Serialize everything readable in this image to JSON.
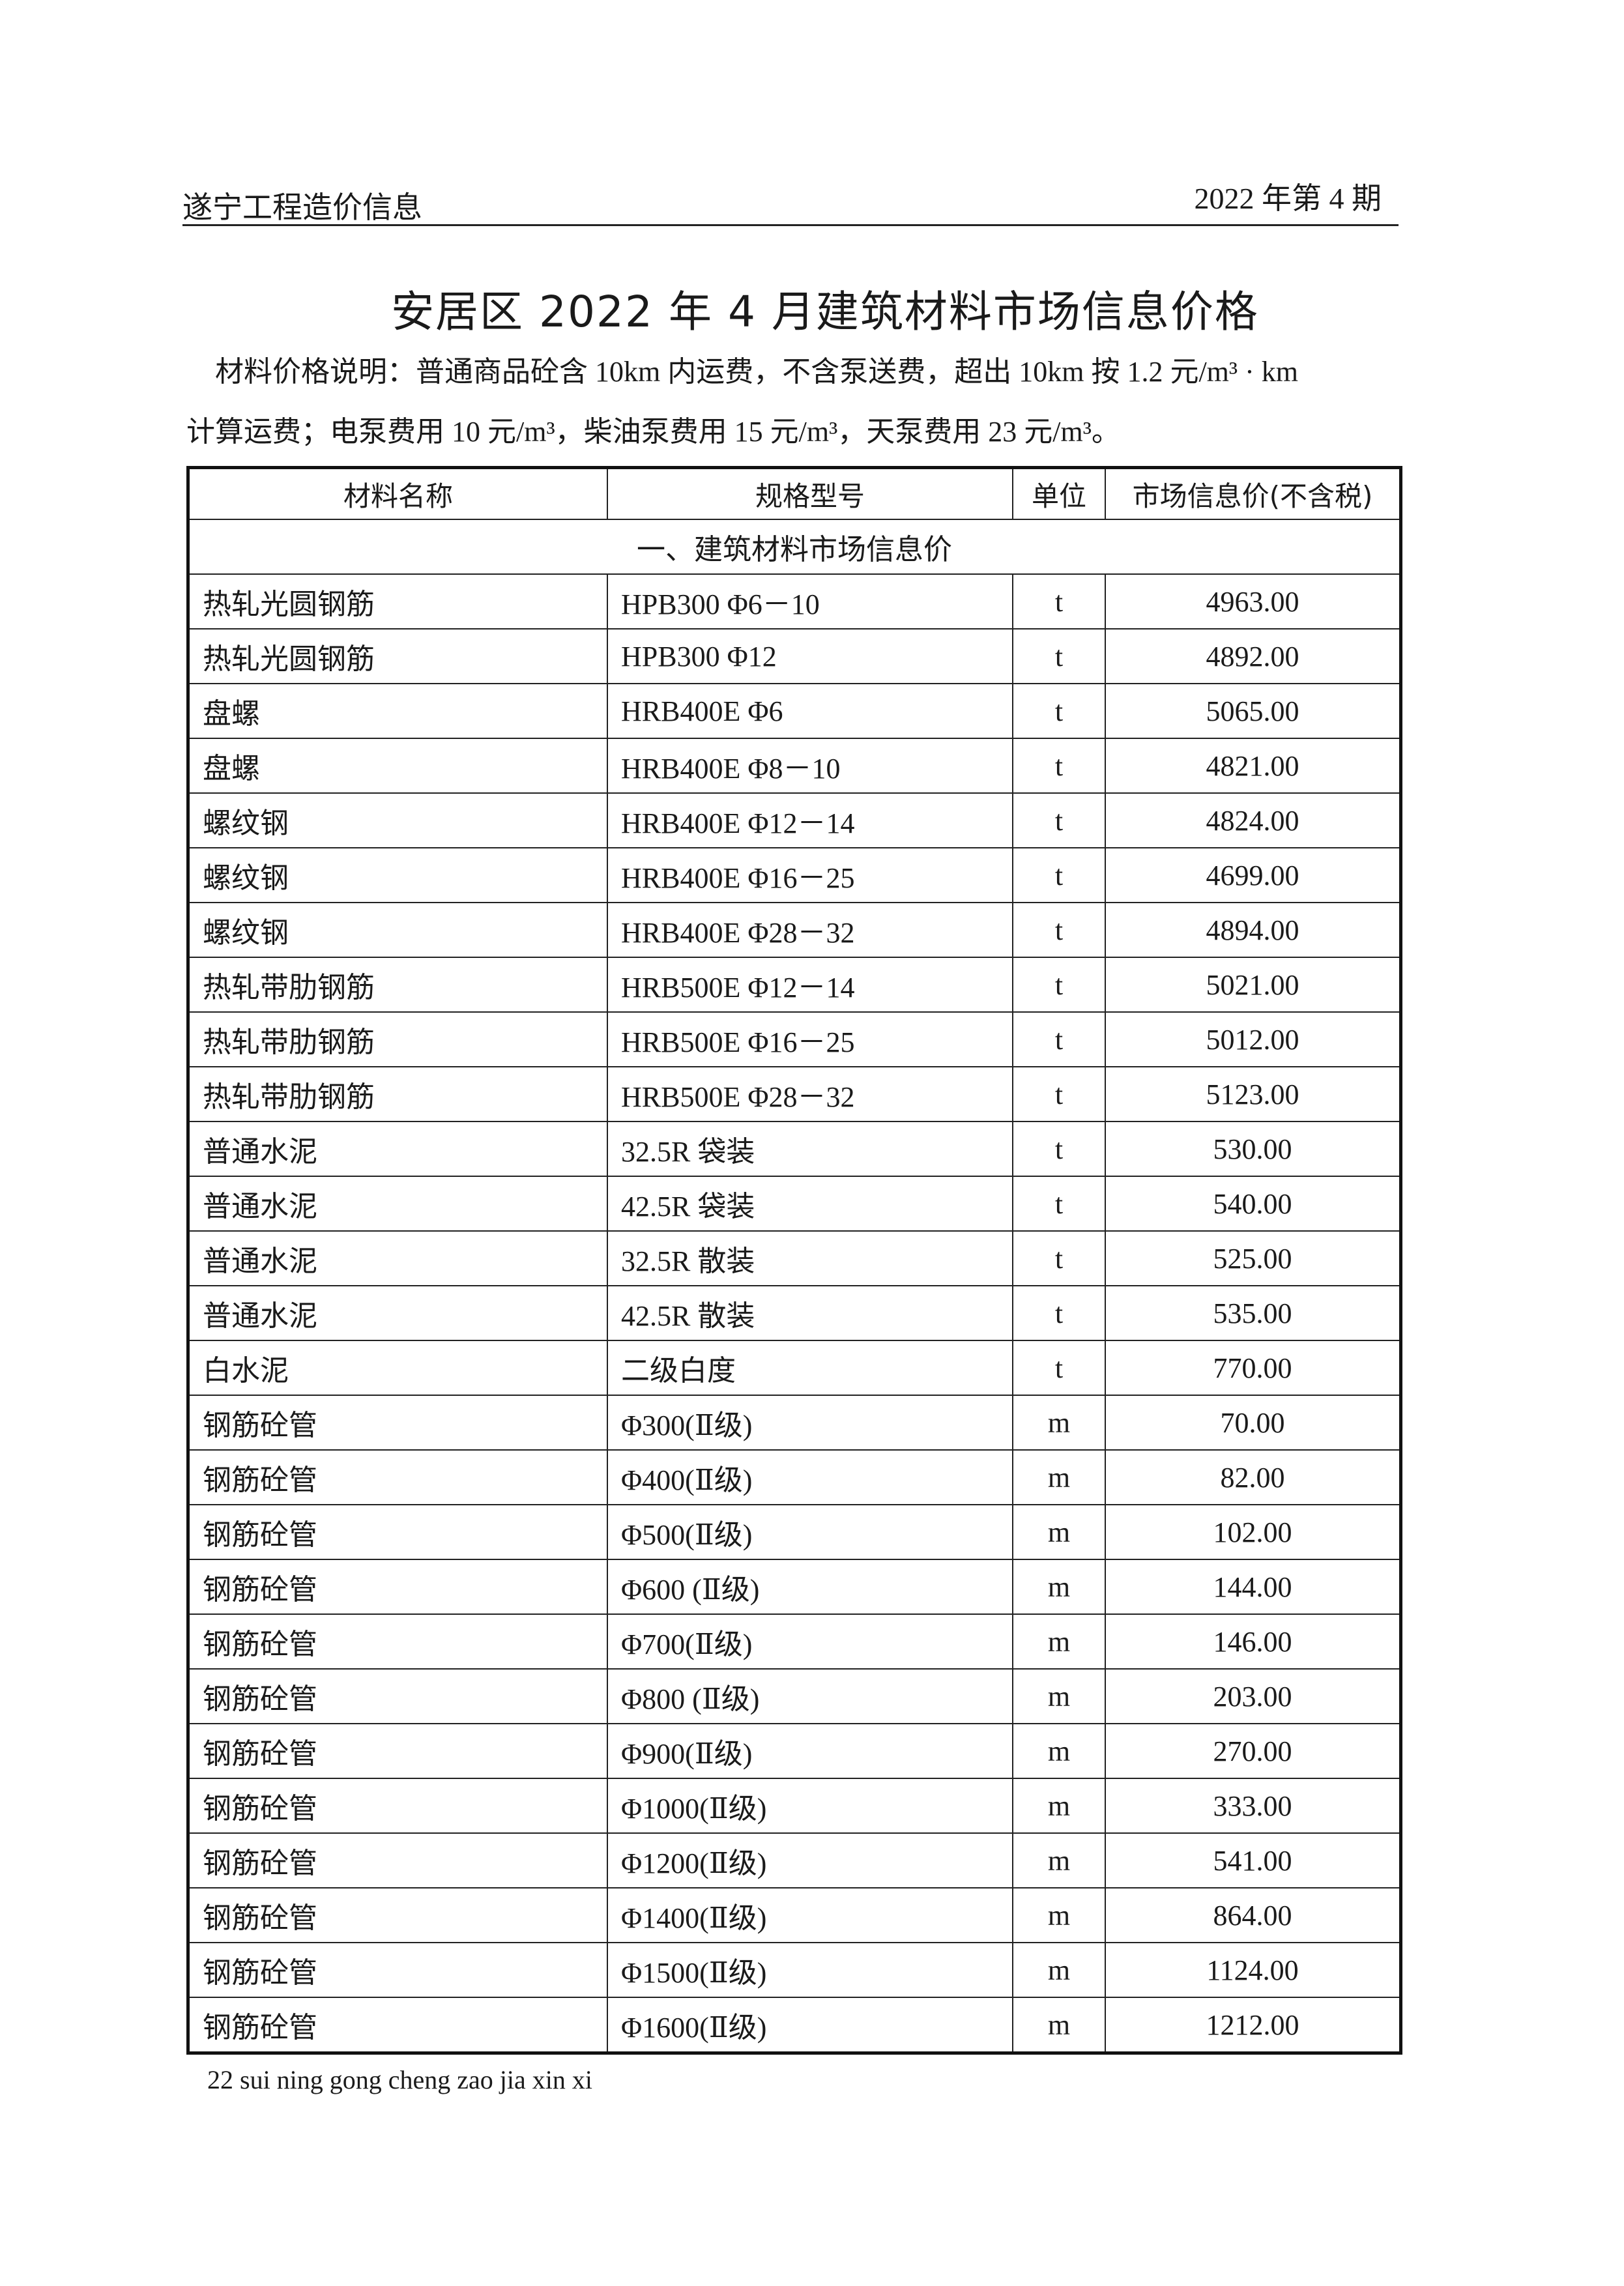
{
  "header": {
    "publication": "遂宁工程造价信息",
    "issue": "2022 年第 4 期"
  },
  "title": "安居区 2022 年 4 月建筑材料市场信息价格",
  "description": {
    "line1": "材料价格说明：普通商品砼含 10km 内运费，不含泵送费，超出 10km 按 1.2 元/m³ · km",
    "line2": "计算运费；电泵费用 10 元/m³，柴油泵费用 15 元/m³，天泵费用 23 元/m³。"
  },
  "table": {
    "columns": [
      "材料名称",
      "规格型号",
      "单位",
      "市场信息价(不含税)"
    ],
    "section": "一、建筑材料市场信息价",
    "rows": [
      [
        "热轧光圆钢筋",
        "HPB300 Φ6－10",
        "t",
        "4963.00"
      ],
      [
        "热轧光圆钢筋",
        "HPB300 Φ12",
        "t",
        "4892.00"
      ],
      [
        "盘螺",
        "HRB400E Φ6",
        "t",
        "5065.00"
      ],
      [
        "盘螺",
        "HRB400E Φ8－10",
        "t",
        "4821.00"
      ],
      [
        "螺纹钢",
        "HRB400E Φ12－14",
        "t",
        "4824.00"
      ],
      [
        "螺纹钢",
        "HRB400E Φ16－25",
        "t",
        "4699.00"
      ],
      [
        "螺纹钢",
        "HRB400E Φ28－32",
        "t",
        "4894.00"
      ],
      [
        "热轧带肋钢筋",
        "HRB500E Φ12－14",
        "t",
        "5021.00"
      ],
      [
        "热轧带肋钢筋",
        "HRB500E Φ16－25",
        "t",
        "5012.00"
      ],
      [
        "热轧带肋钢筋",
        "HRB500E Φ28－32",
        "t",
        "5123.00"
      ],
      [
        "普通水泥",
        "32.5R 袋装",
        "t",
        "530.00"
      ],
      [
        "普通水泥",
        "42.5R 袋装",
        "t",
        "540.00"
      ],
      [
        "普通水泥",
        "32.5R 散装",
        "t",
        "525.00"
      ],
      [
        "普通水泥",
        "42.5R 散装",
        "t",
        "535.00"
      ],
      [
        "白水泥",
        "二级白度",
        "t",
        "770.00"
      ],
      [
        "钢筋砼管",
        "Φ300(Ⅱ级)",
        "m",
        "70.00"
      ],
      [
        "钢筋砼管",
        "Φ400(Ⅱ级)",
        "m",
        "82.00"
      ],
      [
        "钢筋砼管",
        "Φ500(Ⅱ级)",
        "m",
        "102.00"
      ],
      [
        "钢筋砼管",
        "Φ600 (Ⅱ级)",
        "m",
        "144.00"
      ],
      [
        "钢筋砼管",
        "Φ700(Ⅱ级)",
        "m",
        "146.00"
      ],
      [
        "钢筋砼管",
        "Φ800 (Ⅱ级)",
        "m",
        "203.00"
      ],
      [
        "钢筋砼管",
        "Φ900(Ⅱ级)",
        "m",
        "270.00"
      ],
      [
        "钢筋砼管",
        "Φ1000(Ⅱ级)",
        "m",
        "333.00"
      ],
      [
        "钢筋砼管",
        "Φ1200(Ⅱ级)",
        "m",
        "541.00"
      ],
      [
        "钢筋砼管",
        "Φ1400(Ⅱ级)",
        "m",
        "864.00"
      ],
      [
        "钢筋砼管",
        "Φ1500(Ⅱ级)",
        "m",
        "1124.00"
      ],
      [
        "钢筋砼管",
        "Φ1600(Ⅱ级)",
        "m",
        "1212.00"
      ]
    ]
  },
  "footer": "22 sui ning gong cheng zao jia xin xi"
}
